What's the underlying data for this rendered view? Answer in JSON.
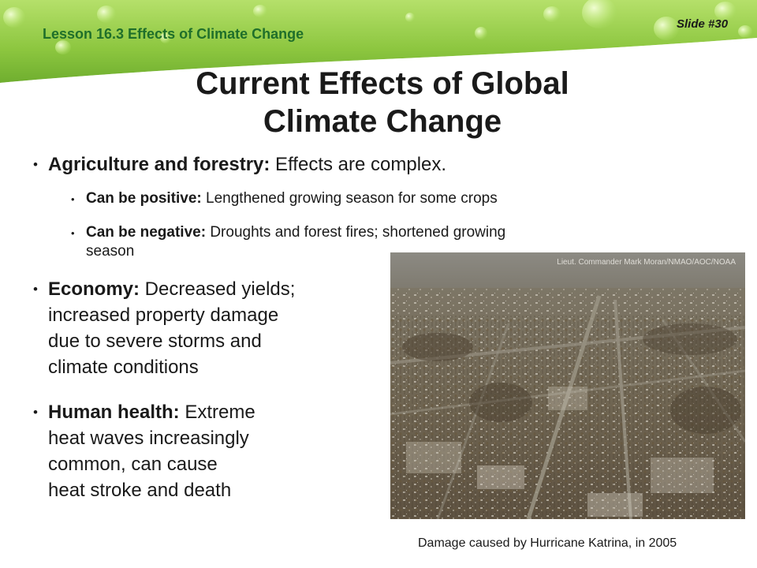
{
  "header": {
    "lesson": "Lesson 16.3 Effects of Climate Change",
    "slide_number": "Slide #30"
  },
  "title": {
    "line1": "Current Effects of Global",
    "line2": "Climate Change"
  },
  "bullets": {
    "agriculture": {
      "bold": "Agriculture and forestry:",
      "text": " Effects are complex.",
      "sub": [
        {
          "bold": "Can be positive:",
          "text": " Lengthened growing season for some crops"
        },
        {
          "bold": "Can be negative:",
          "text": " Droughts and forest fires; shortened growing",
          "text2": "season"
        }
      ]
    },
    "economy": {
      "bold": "Economy:",
      "lines": [
        " Decreased yields;",
        "increased property damage",
        "due to severe storms and",
        "climate conditions"
      ]
    },
    "health": {
      "bold": "Human health:",
      "lines": [
        " Extreme",
        "heat waves increasingly",
        "common, can cause",
        "heat stroke and death"
      ]
    }
  },
  "photo": {
    "credit": "Lieut. Commander Mark Moran/NMAO/AOC/NOAA",
    "caption": "Damage caused by Hurricane Katrina, in 2005"
  },
  "colors": {
    "banner_green": "#8cc63f",
    "lesson_text": "#1f6f2a"
  }
}
